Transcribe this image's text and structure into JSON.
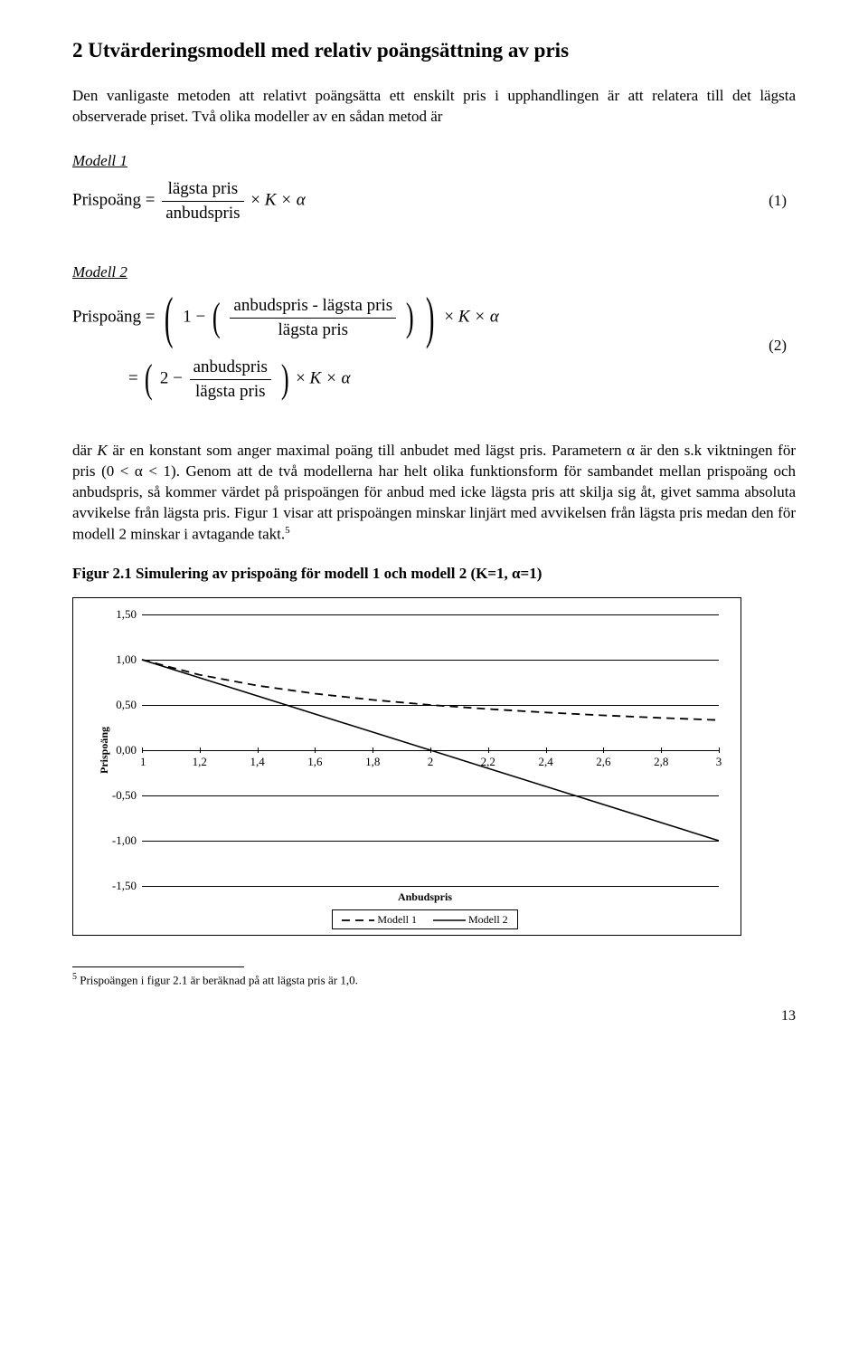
{
  "section": {
    "title": "2  Utvärderingsmodell med relativ poängsättning av pris",
    "intro": "Den vanligaste metoden att relativt poängsätta ett enskilt pris i upphandlingen är att relatera till det lägsta observerade priset. Två olika modeller av en sådan metod är"
  },
  "model1": {
    "label": "Modell 1",
    "lhs": "Prispoäng",
    "num": "lägsta pris",
    "den": "anbudspris",
    "tail": "K × α",
    "eqnum": "(1)"
  },
  "model2": {
    "label": "Modell 2",
    "lhs": "Prispoäng",
    "inner_num": "anbudspris - lägsta pris",
    "inner_den": "lägsta pris",
    "tail": "K × α",
    "line2_num": "anbudspris",
    "line2_den": "lägsta pris",
    "eqnum": "(2)"
  },
  "body": {
    "p1_a": "där ",
    "p1_k": "K",
    "p1_b": " är en konstant som anger maximal poäng till anbudet med lägst pris. Parametern α är den s.k viktningen för pris ",
    "p1_cond": "(0 < α < 1)",
    "p1_c": ". Genom att de två modellerna har helt olika funktionsform för sambandet mellan prispoäng och anbudspris, så kommer värdet på prispoängen för anbud med icke lägsta pris att skilja sig åt, givet samma absoluta avvikelse från lägsta pris. Figur 1 visar att prispoängen minskar linjärt med avvikelsen från lägsta pris medan den för modell 2 minskar i avtagande takt.",
    "fn_marker": "5"
  },
  "figure": {
    "title": "Figur 2.1 Simulering av prispoäng för modell 1 och modell 2 (K=1, α=1)",
    "ylabel": "Prispoäng",
    "xlabel": "Anbudspris",
    "ymin": -1.5,
    "ymax": 1.5,
    "yticks": [
      "1,50",
      "1,00",
      "0,50",
      "0,00",
      "-0,50",
      "-1,00",
      "-1,50"
    ],
    "ytick_vals": [
      1.5,
      1.0,
      0.5,
      0.0,
      -0.5,
      -1.0,
      -1.5
    ],
    "xticks": [
      "1",
      "1,2",
      "1,4",
      "1,6",
      "1,8",
      "2",
      "2,2",
      "2,4",
      "2,6",
      "2,8",
      "3"
    ],
    "xtick_vals": [
      1,
      1.2,
      1.4,
      1.6,
      1.8,
      2,
      2.2,
      2.4,
      2.6,
      2.8,
      3
    ],
    "xmin": 1,
    "xmax": 3,
    "series": {
      "model1": {
        "label": "Modell 1",
        "stroke": "#000000",
        "dash": "9,6",
        "width": 1.8,
        "x": [
          1,
          1.2,
          1.4,
          1.6,
          1.8,
          2,
          2.2,
          2.4,
          2.6,
          2.8,
          3
        ],
        "y": [
          1.0,
          0.833,
          0.714,
          0.625,
          0.556,
          0.5,
          0.455,
          0.417,
          0.385,
          0.357,
          0.333
        ]
      },
      "model2": {
        "label": "Modell 2",
        "stroke": "#000000",
        "dash": "",
        "width": 1.6,
        "x": [
          1,
          3
        ],
        "y": [
          1.0,
          -1.0
        ]
      }
    },
    "legend_order": [
      "model1",
      "model2"
    ],
    "grid_color": "#000000",
    "bg": "#ffffff"
  },
  "footnote": {
    "marker": "5",
    "text": " Prispoängen i figur 2.1 är beräknad på att lägsta pris är 1,0."
  },
  "page": "13"
}
